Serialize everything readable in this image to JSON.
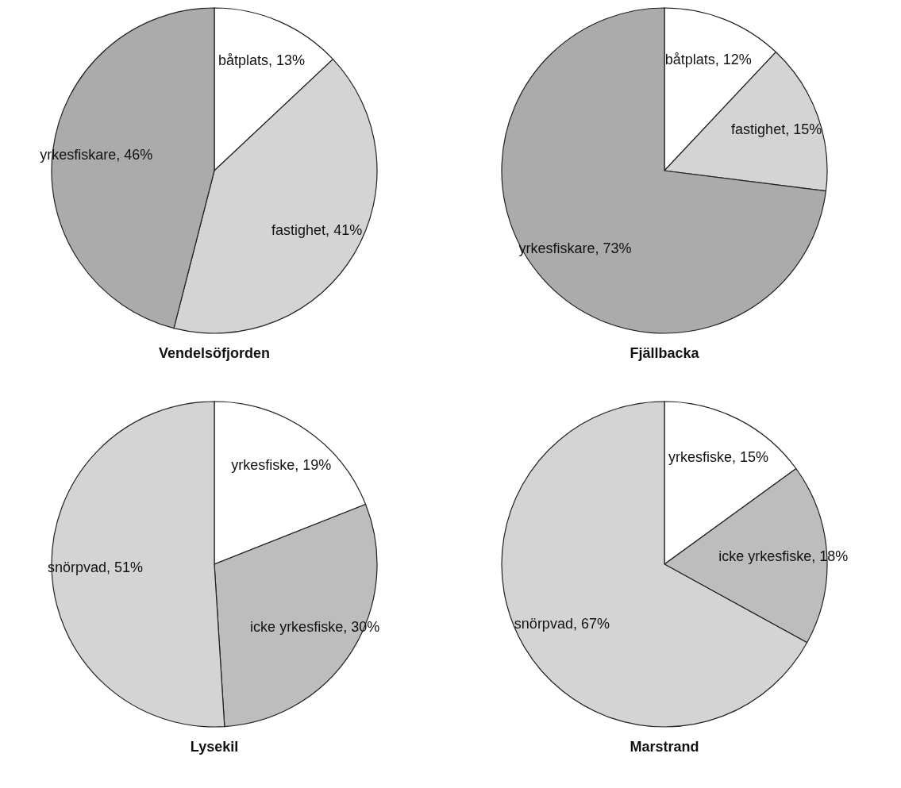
{
  "chart_data": [
    {
      "type": "pie",
      "title": "Vendelsöfjorden",
      "categories": [
        "båtplats",
        "fastighet",
        "yrkesfiskare"
      ],
      "values": [
        13,
        41,
        46
      ],
      "value_labels": [
        "13%",
        "41%",
        "46%"
      ],
      "colors": [
        "#ffffff",
        "#d4d4d4",
        "#ababab"
      ]
    },
    {
      "type": "pie",
      "title": "Fjällbacka",
      "categories": [
        "båtplats",
        "fastighet",
        "yrkesfiskare"
      ],
      "values": [
        12,
        15,
        73
      ],
      "value_labels": [
        "12%",
        "15%",
        "73%"
      ],
      "colors": [
        "#ffffff",
        "#d4d4d4",
        "#ababab"
      ]
    },
    {
      "type": "pie",
      "title": "Lysekil",
      "categories": [
        "yrkesfiske",
        "icke yrkesfiske",
        "snörpvad"
      ],
      "values": [
        19,
        30,
        51
      ],
      "value_labels": [
        "19%",
        "30%",
        "51%"
      ],
      "colors": [
        "#ffffff",
        "#bdbdbd",
        "#d4d4d4"
      ]
    },
    {
      "type": "pie",
      "title": "Marstrand",
      "categories": [
        "yrkesfiske",
        "icke yrkesfiske",
        "snörpvad"
      ],
      "values": [
        15,
        18,
        67
      ],
      "value_labels": [
        "15%",
        "18%",
        "67%"
      ],
      "colors": [
        "#ffffff",
        "#bdbdbd",
        "#d4d4d4"
      ]
    }
  ]
}
